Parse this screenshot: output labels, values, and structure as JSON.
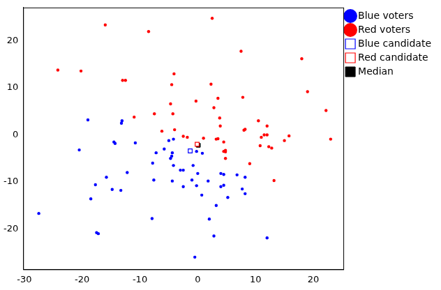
{
  "chart_data": {
    "type": "scatter",
    "xlim": [
      -30.2,
      25.2
    ],
    "xticks": [
      -30,
      -20,
      -10,
      0,
      10,
      20
    ],
    "ylim": [
      -28.6,
      27.1
    ],
    "yticks": [
      -20,
      -10,
      0,
      10,
      20
    ],
    "grid": false,
    "legend": "right",
    "series": [
      {
        "name": "Blue voters",
        "color": "#0000ff",
        "marker": "circle",
        "x": [
          -27.5,
          -20.5,
          -19,
          -18.5,
          -17.7,
          -17.5,
          -17.2,
          -15.8,
          -14.8,
          -14.5,
          -14.3,
          -13.3,
          -13.2,
          -13.1,
          -12.2,
          -10.8,
          -7.8,
          -7.6,
          -7.2,
          -7.9,
          -5.8,
          -5,
          -4.7,
          -4.5,
          -4.4,
          -4.2,
          -4.4,
          -4.2,
          -3,
          -2.5,
          -2.5,
          -1,
          -0.8,
          -0.2,
          -0.2,
          0,
          0.8,
          0.7,
          1.8,
          2,
          2.8,
          3.2,
          4,
          4,
          4.5,
          4.5,
          5.2,
          6.8,
          7.7,
          8.2,
          8.2,
          -0.5,
          12
        ],
        "y": [
          -16.7,
          -3.2,
          3.2,
          -13.6,
          -10.6,
          -20.8,
          -21,
          -9,
          -11.6,
          -1.5,
          -1.8,
          -11.8,
          2.5,
          3,
          -8,
          -1.7,
          -6,
          -9.6,
          -3.8,
          -17.8,
          -3,
          -1.2,
          -5,
          -4.5,
          -3.8,
          -0.9,
          -9.8,
          -6.5,
          -7.5,
          -7.5,
          -11,
          -9.6,
          -6.5,
          -3.5,
          -10.8,
          -8.2,
          -3.9,
          -12.8,
          -9.8,
          -17.9,
          -21.5,
          -15,
          -11,
          -8.2,
          -8.4,
          -10.7,
          -13.3,
          -8.5,
          -11.5,
          -9,
          -12.5,
          -26,
          -21.9
        ]
      },
      {
        "name": "Red voters",
        "color": "#ff0000",
        "marker": "circle",
        "x": [
          -24.2,
          -20.2,
          -16,
          -13,
          -12.5,
          -11,
          -8.5,
          -7.5,
          -6.2,
          -4.7,
          -4.5,
          -4.3,
          -4,
          -4.1,
          -2.5,
          -1.8,
          -0.3,
          1,
          2.3,
          2.5,
          2.8,
          3.5,
          3.5,
          3.2,
          3.8,
          3.9,
          4.5,
          4.5,
          4.8,
          4.8,
          4.8,
          7.5,
          7.8,
          8,
          8.2,
          9,
          10.5,
          10.8,
          11,
          11.5,
          12,
          12,
          12.3,
          12.8,
          13.2,
          15,
          15.8,
          18,
          19,
          22.2,
          23
        ],
        "y": [
          13.8,
          13.6,
          23.4,
          11.6,
          11.6,
          3.8,
          22,
          4.5,
          0.8,
          6.6,
          10.7,
          4.5,
          1.1,
          13,
          -0.3,
          -0.5,
          7.2,
          -0.7,
          10.8,
          24.8,
          5.8,
          7.8,
          -0.8,
          -0.9,
          3.6,
          1.9,
          -1.5,
          -3.5,
          -3.3,
          -3.6,
          -5,
          17.8,
          8,
          1,
          1.2,
          -6.1,
          3,
          -2.3,
          -0.5,
          0,
          1.9,
          0,
          -2.5,
          -2.8,
          -9.7,
          -1.2,
          -0.2,
          16.2,
          9.2,
          5.2,
          -0.9
        ]
      },
      {
        "name": "Blue candidate",
        "color": "#0000ff",
        "marker": "square_open",
        "x": [
          -1.3
        ],
        "y": [
          -3.4
        ]
      },
      {
        "name": "Red candidate",
        "color": "#ff0000",
        "marker": "square_open",
        "x": [
          -0.1
        ],
        "y": [
          -2.0
        ]
      },
      {
        "name": "Median",
        "color": "#000000",
        "marker": "square",
        "x": [
          0.1
        ],
        "y": [
          -2.2
        ]
      }
    ]
  }
}
